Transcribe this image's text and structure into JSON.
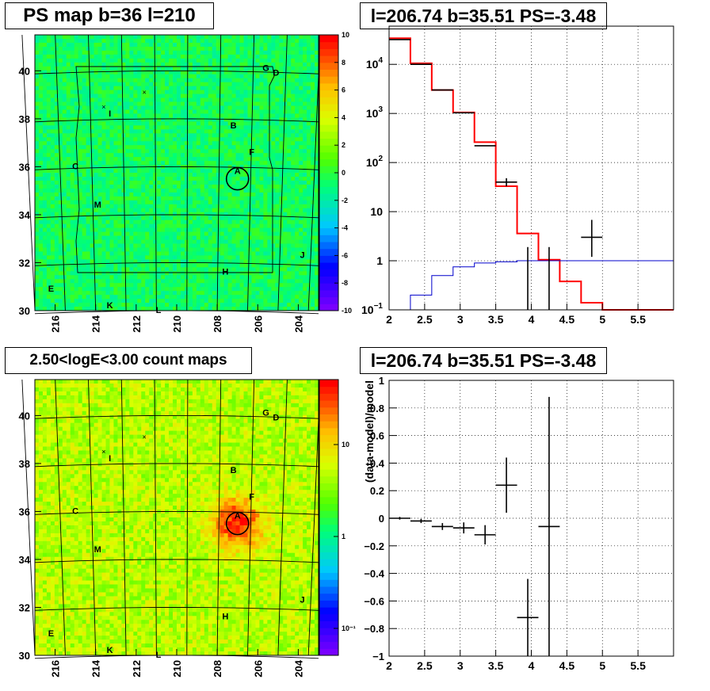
{
  "panels": {
    "ps_map": {
      "title": "PS map b=36 l=210",
      "xticks": [
        "216",
        "214",
        "212",
        "210",
        "208",
        "206",
        "204"
      ],
      "yticks": [
        "30",
        "32",
        "34",
        "36",
        "38",
        "40"
      ],
      "colorbar": {
        "min": -10,
        "max": 10,
        "ticks": [
          "10",
          "8",
          "6",
          "4",
          "2",
          "0",
          "-2",
          "-4",
          "-6",
          "-8",
          "-10"
        ]
      },
      "labels": [
        "A",
        "B",
        "C",
        "D",
        "E",
        "F",
        "G",
        "H",
        "I",
        "J",
        "K",
        "L",
        "M"
      ]
    },
    "count_map": {
      "title": "2.50<logE<3.00 count maps",
      "xticks": [
        "216",
        "214",
        "212",
        "210",
        "208",
        "206",
        "204"
      ],
      "yticks": [
        "30",
        "32",
        "34",
        "36",
        "38",
        "40"
      ],
      "colorbar": {
        "ticks": [
          "10",
          "1",
          "10⁻¹"
        ]
      },
      "labels": [
        "A",
        "B",
        "C",
        "D",
        "E",
        "F",
        "G",
        "H",
        "I",
        "J",
        "K",
        "L",
        "M"
      ]
    },
    "spectrum": {
      "title": "l=206.74 b=35.51 PS=-3.48"
    },
    "residual": {
      "title": "l=206.74 b=35.51 PS=-3.48"
    }
  },
  "colors": {
    "data": "#000000",
    "model": "#ff0000",
    "ps": "#0000cc"
  },
  "chart_data": [
    {
      "type": "heatmap",
      "title": "PS map b=36 l=210",
      "xlabel": "",
      "ylabel": "",
      "xlim": [
        217,
        203
      ],
      "ylim": [
        30,
        41.5
      ],
      "zlim": [
        -10,
        10
      ],
      "sources": [
        {
          "label": "A",
          "l": 207.0,
          "b": 35.5
        }
      ]
    },
    {
      "type": "heatmap",
      "title": "2.50<logE<3.00 count maps",
      "xlabel": "",
      "ylabel": "",
      "xlim": [
        217,
        203
      ],
      "ylim": [
        30,
        41.5
      ],
      "zscale": "log",
      "sources": [
        {
          "label": "A",
          "l": 207.0,
          "b": 35.5
        }
      ]
    },
    {
      "type": "line",
      "title": "l=206.74 b=35.51 PS=-3.48",
      "xlim": [
        2,
        6
      ],
      "ylim": [
        0.1,
        60000
      ],
      "yscale": "log",
      "series": [
        {
          "name": "",
          "kind": "data",
          "points": [
            {
              "x": 2.15,
              "xerr": 0.15,
              "y": 32000
            },
            {
              "x": 2.45,
              "xerr": 0.15,
              "y": 10000
            },
            {
              "x": 2.75,
              "xerr": 0.15,
              "y": 3000
            },
            {
              "x": 3.05,
              "xerr": 0.15,
              "y": 1030
            },
            {
              "x": 3.35,
              "xerr": 0.15,
              "y": 220
            },
            {
              "x": 3.65,
              "xerr": 0.15,
              "y": 40,
              "ylo": 33,
              "yhi": 48
            },
            {
              "x": 3.95,
              "xerr": 0.0,
              "y": 1,
              "ylo": 0.1,
              "yhi": 1.9
            },
            {
              "x": 4.25,
              "xerr": 0.0,
              "y": 1,
              "ylo": 0.1,
              "yhi": 1.9
            },
            {
              "x": 4.85,
              "xerr": 0.15,
              "y": 3,
              "ylo": 1.2,
              "yhi": 6.8
            }
          ]
        },
        {
          "name": "",
          "kind": "model",
          "edges": [
            2.0,
            2.3,
            2.6,
            2.9,
            3.2,
            3.5,
            3.8,
            4.1,
            4.4,
            4.7,
            5.0,
            6.0
          ],
          "values": [
            34000,
            10500,
            3000,
            1050,
            260,
            33,
            3.6,
            1.05,
            0.38,
            0.14,
            0.1
          ]
        },
        {
          "name": "",
          "kind": "ps",
          "edges": [
            2.3,
            2.6,
            2.9,
            3.2,
            3.5,
            3.8,
            4.1,
            4.4,
            6.0
          ],
          "values": [
            0.2,
            0.5,
            0.75,
            0.9,
            0.95,
            1.0,
            1.0,
            1.0
          ]
        }
      ]
    },
    {
      "type": "scatter",
      "title": "l=206.74 b=35.51 PS=-3.48",
      "ylabel": "(data-model)/model",
      "xlim": [
        2,
        6
      ],
      "ylim": [
        -1,
        1
      ],
      "points": [
        {
          "x": 2.15,
          "xerr": 0.15,
          "y": 0.0,
          "yerr": 0.01
        },
        {
          "x": 2.45,
          "xerr": 0.15,
          "y": -0.02,
          "yerr": 0.015
        },
        {
          "x": 2.75,
          "xerr": 0.15,
          "y": -0.06,
          "yerr": 0.025
        },
        {
          "x": 3.05,
          "xerr": 0.15,
          "y": -0.07,
          "yerr": 0.04
        },
        {
          "x": 3.35,
          "xerr": 0.15,
          "y": -0.12,
          "yerr": 0.07
        },
        {
          "x": 3.65,
          "xerr": 0.15,
          "y": 0.24,
          "yerr": 0.2
        },
        {
          "x": 3.95,
          "xerr": 0.15,
          "y": -0.72,
          "yerr": 0.28
        },
        {
          "x": 4.25,
          "xerr": 0.15,
          "y": -0.06,
          "yerr": 0.94
        }
      ]
    }
  ]
}
